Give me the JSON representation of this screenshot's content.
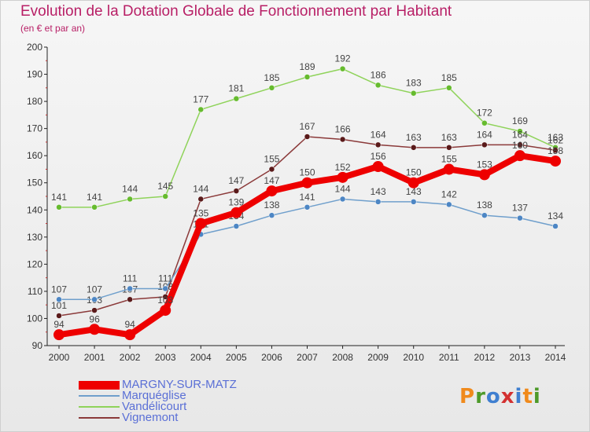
{
  "header": {
    "title": "Evolution de la Dotation Globale de Fonctionnement par Habitant",
    "subtitle": "(en € et par an)"
  },
  "logo": {
    "letters": [
      "P",
      "r",
      "o",
      "x",
      "i",
      "t",
      "i"
    ],
    "colors": [
      "#f08a1c",
      "#4d9a2a",
      "#3f7fd0",
      "#d33131",
      "#3f7fd0",
      "#f08a1c",
      "#4d9a2a"
    ]
  },
  "chart_data": {
    "type": "line",
    "title": "Evolution de la Dotation Globale de Fonctionnement par Habitant",
    "subtitle": "(en € et par an)",
    "x": [
      "2000",
      "2001",
      "2002",
      "2003",
      "2004",
      "2005",
      "2006",
      "2007",
      "2008",
      "2009",
      "2010",
      "2011",
      "2012",
      "2013",
      "2014"
    ],
    "ylim": [
      90,
      200
    ],
    "yticks": [
      90,
      100,
      110,
      120,
      130,
      140,
      150,
      160,
      170,
      180,
      190,
      200
    ],
    "grid": false,
    "legend_position": "bottom-left",
    "series": [
      {
        "name": "Vandélicourt",
        "color": "#8fd35a",
        "marker": "#66bb2e",
        "emphasis": false,
        "values": [
          141,
          141,
          144,
          145,
          177,
          181,
          185,
          189,
          192,
          186,
          183,
          185,
          172,
          169,
          163
        ]
      },
      {
        "name": "Vignemont",
        "color": "#8b3a3a",
        "marker": "#5a1a1a",
        "emphasis": false,
        "values": [
          101,
          103,
          107,
          108,
          144,
          147,
          155,
          167,
          166,
          164,
          163,
          163,
          164,
          164,
          162
        ]
      },
      {
        "name": "Marquéglise",
        "color": "#6f9fcc",
        "marker": "#4d86c4",
        "emphasis": false,
        "values": [
          107,
          107,
          111,
          111,
          131,
          134,
          138,
          141,
          144,
          143,
          143,
          142,
          138,
          137,
          134
        ]
      },
      {
        "name": "MARGNY-SUR-MATZ",
        "color": "#ee0000",
        "marker": "#ee0000",
        "emphasis": true,
        "values": [
          94,
          96,
          94,
          103,
          135,
          139,
          147,
          150,
          152,
          156,
          150,
          155,
          153,
          160,
          158
        ]
      }
    ],
    "legend_order": [
      "MARGNY-SUR-MATZ",
      "Marquéglise",
      "Vandélicourt",
      "Vignemont"
    ]
  }
}
